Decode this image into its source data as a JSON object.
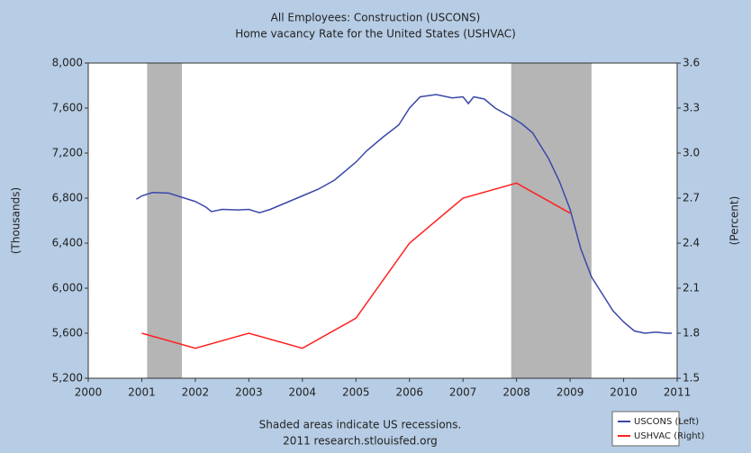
{
  "chart_data": {
    "type": "line",
    "title": "All Employees: Construction (USCONS)",
    "subtitle": "Home vacancy Rate for the United States (USHVAC)",
    "y_label": "(Thousands)",
    "y2_label": "(Percent)",
    "footer": [
      "Shaded areas indicate US recessions.",
      "2011 research.stlouisfed.org"
    ],
    "xlim": [
      2000,
      2011
    ],
    "xticks": [
      2000,
      2001,
      2002,
      2003,
      2004,
      2005,
      2006,
      2007,
      2008,
      2009,
      2010,
      2011
    ],
    "ylim": [
      5200,
      8000
    ],
    "yticks": [
      {
        "value": 5200,
        "label": "5,200"
      },
      {
        "value": 5600,
        "label": "5,600"
      },
      {
        "value": 6000,
        "label": "6,000"
      },
      {
        "value": 6400,
        "label": "6,400"
      },
      {
        "value": 6800,
        "label": "6,800"
      },
      {
        "value": 7200,
        "label": "7,200"
      },
      {
        "value": 7600,
        "label": "7,600"
      },
      {
        "value": 8000,
        "label": "8,000"
      }
    ],
    "y2lim": [
      1.5,
      3.6
    ],
    "y2ticks": [
      1.5,
      1.8,
      2.1,
      2.4,
      2.7,
      {
        "value": 3,
        "label": "3.0"
      },
      3.3,
      3.6
    ],
    "recessions": [
      [
        2001.1,
        2001.75
      ],
      [
        2007.9,
        2009.4
      ]
    ],
    "recession_color": "#b5b5b5",
    "series": [
      {
        "name": "USCONS (Left)",
        "color": "#3b48a8",
        "axis": "y",
        "x": [
          2000.9,
          2001.0,
          2001.2,
          2001.5,
          2001.8,
          2002.0,
          2002.2,
          2002.3,
          2002.5,
          2002.8,
          2003.0,
          2003.2,
          2003.4,
          2003.7,
          2004.0,
          2004.3,
          2004.6,
          2005.0,
          2005.2,
          2005.5,
          2005.8,
          2006.0,
          2006.2,
          2006.5,
          2006.8,
          2007.0,
          2007.1,
          2007.2,
          2007.4,
          2007.6,
          2007.9,
          2008.1,
          2008.3,
          2008.6,
          2008.8,
          2009.0,
          2009.2,
          2009.4,
          2009.6,
          2009.8,
          2010.0,
          2010.2,
          2010.4,
          2010.6,
          2010.8,
          2010.9
        ],
        "values": [
          6790,
          6820,
          6850,
          6845,
          6800,
          6770,
          6720,
          6680,
          6700,
          6695,
          6700,
          6670,
          6700,
          6760,
          6820,
          6880,
          6960,
          7120,
          7220,
          7340,
          7450,
          7600,
          7700,
          7720,
          7690,
          7700,
          7640,
          7700,
          7680,
          7600,
          7520,
          7460,
          7380,
          7150,
          6950,
          6700,
          6350,
          6100,
          5950,
          5800,
          5700,
          5620,
          5600,
          5610,
          5600,
          5600
        ]
      },
      {
        "name": "USHVAC (Right)",
        "color": "#ff2020",
        "axis": "y2",
        "x": [
          2001,
          2002,
          2003,
          2004,
          2005,
          2006,
          2007,
          2008,
          2009
        ],
        "values": [
          1.8,
          1.7,
          1.8,
          1.7,
          1.9,
          2.4,
          2.7,
          2.8,
          2.6
        ]
      }
    ]
  }
}
